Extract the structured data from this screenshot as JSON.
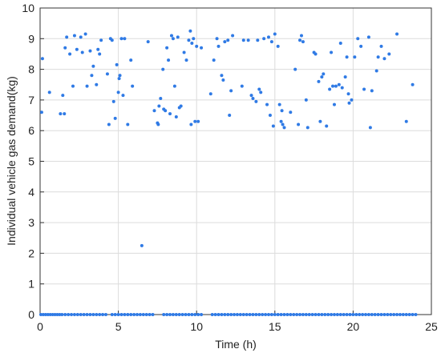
{
  "chart_data": {
    "type": "scatter",
    "xlabel": "Time (h)",
    "ylabel": "Individual vehicle gas demand(kg)",
    "color": "#2f7ae5",
    "xlim": [
      0,
      25
    ],
    "xticks": [
      0,
      5,
      10,
      15,
      20,
      25
    ],
    "ylim": [
      0,
      10
    ],
    "yticks": [
      0,
      1,
      2,
      3,
      4,
      5,
      6,
      7,
      8,
      9,
      10
    ],
    "grid": true,
    "x": [
      0.1,
      0.15,
      0.6,
      1.3,
      1.45,
      1.55,
      1.6,
      1.7,
      1.9,
      2.1,
      2.2,
      2.35,
      2.6,
      2.7,
      2.9,
      3.0,
      3.2,
      3.3,
      3.4,
      3.6,
      3.7,
      3.8,
      3.9,
      4.3,
      4.4,
      4.5,
      4.6,
      4.7,
      4.8,
      4.9,
      5.0,
      5.05,
      5.1,
      5.2,
      5.3,
      5.4,
      5.6,
      5.8,
      5.9,
      6.5,
      6.9,
      7.3,
      7.5,
      7.55,
      7.6,
      7.7,
      7.85,
      7.9,
      8.0,
      8.1,
      8.2,
      8.3,
      8.4,
      8.5,
      8.6,
      8.7,
      8.8,
      8.9,
      9.0,
      9.2,
      9.35,
      9.5,
      9.6,
      9.65,
      9.7,
      9.8,
      9.9,
      10.0,
      10.1,
      10.3,
      10.9,
      11.1,
      11.3,
      11.4,
      11.6,
      11.7,
      11.8,
      12.0,
      12.1,
      12.2,
      12.3,
      12.9,
      13.0,
      13.3,
      13.5,
      13.6,
      13.8,
      13.9,
      14.0,
      14.1,
      14.3,
      14.5,
      14.6,
      14.7,
      14.8,
      14.9,
      15.0,
      15.2,
      15.3,
      15.4,
      15.45,
      15.5,
      15.6,
      16.0,
      16.3,
      16.5,
      16.6,
      16.7,
      16.8,
      17.0,
      17.1,
      17.5,
      17.6,
      17.8,
      17.9,
      18.0,
      18.1,
      18.3,
      18.5,
      18.6,
      18.7,
      18.8,
      18.9,
      19.1,
      19.2,
      19.3,
      19.5,
      19.6,
      19.7,
      19.75,
      19.9,
      20.1,
      20.3,
      20.5,
      20.7,
      21.0,
      21.1,
      21.2,
      21.5,
      21.6,
      21.8,
      22.0,
      22.3,
      22.8,
      23.4,
      23.8,
      0.05,
      0.2,
      0.35,
      0.5,
      0.65,
      0.8,
      0.95,
      1.1,
      1.25,
      1.4,
      1.6,
      1.8,
      2.0,
      2.2,
      2.4,
      2.6,
      2.8,
      3.0,
      3.2,
      3.4,
      3.6,
      3.8,
      4.0,
      4.2,
      4.6,
      4.8,
      5.0,
      5.2,
      5.4,
      5.6,
      5.8,
      6.0,
      6.2,
      6.4,
      6.6,
      6.8,
      7.0,
      7.2,
      7.9,
      8.1,
      8.3,
      8.5,
      8.7,
      8.9,
      9.1,
      9.3,
      9.5,
      9.7,
      9.9,
      10.1,
      10.3,
      11.0,
      11.2,
      11.4,
      11.6,
      11.8,
      12.0,
      12.2,
      12.4,
      12.6,
      12.8,
      13.0,
      13.2,
      13.4,
      13.6,
      13.8,
      14.0,
      14.2,
      14.4,
      14.6,
      14.8,
      15.0,
      15.2,
      15.4,
      15.6,
      15.8,
      16.0,
      16.2,
      16.4,
      16.6,
      16.8,
      17.0,
      17.2,
      17.4,
      17.6,
      17.8,
      18.0,
      18.2,
      18.4,
      18.6,
      18.8,
      19.0,
      19.2,
      19.4,
      19.6,
      19.8,
      20.0,
      20.2,
      20.4,
      20.6,
      20.8,
      21.0,
      21.2,
      21.4,
      21.6,
      21.8,
      22.0,
      22.2,
      22.4,
      22.6,
      22.8,
      23.0,
      23.2,
      23.4,
      23.6,
      23.8,
      24.0
    ],
    "values": [
      6.6,
      8.35,
      7.25,
      6.55,
      7.15,
      6.55,
      8.7,
      9.05,
      8.5,
      7.45,
      9.1,
      8.65,
      9.05,
      8.55,
      9.15,
      7.45,
      8.6,
      7.8,
      8.1,
      7.5,
      8.65,
      8.5,
      8.95,
      7.85,
      6.2,
      9.0,
      8.95,
      6.95,
      6.4,
      8.15,
      7.25,
      7.7,
      7.8,
      9.0,
      7.15,
      9.0,
      6.2,
      8.3,
      7.45,
      2.25,
      8.9,
      6.65,
      6.25,
      6.2,
      6.8,
      7.05,
      8.0,
      6.7,
      6.65,
      8.7,
      8.3,
      6.55,
      9.1,
      9.0,
      7.45,
      6.45,
      9.05,
      6.75,
      6.8,
      8.55,
      8.3,
      8.95,
      9.25,
      6.2,
      8.85,
      9.0,
      6.3,
      8.75,
      6.3,
      8.7,
      7.2,
      8.3,
      9.0,
      8.75,
      7.8,
      7.65,
      8.9,
      8.95,
      6.5,
      7.3,
      9.1,
      7.45,
      8.95,
      8.95,
      7.15,
      7.05,
      6.95,
      8.95,
      7.35,
      7.25,
      9.0,
      6.85,
      9.05,
      6.5,
      8.9,
      6.15,
      9.15,
      8.75,
      6.85,
      6.3,
      6.65,
      6.2,
      6.1,
      6.6,
      8.0,
      6.2,
      8.95,
      9.1,
      8.9,
      7.0,
      6.1,
      8.55,
      8.5,
      7.6,
      6.3,
      7.75,
      7.85,
      6.15,
      7.35,
      8.55,
      7.45,
      6.85,
      7.45,
      7.5,
      8.85,
      7.4,
      7.75,
      8.4,
      7.2,
      6.9,
      7.0,
      8.4,
      9.0,
      8.75,
      7.35,
      9.05,
      6.1,
      7.3,
      7.95,
      8.4,
      8.75,
      8.35,
      8.5,
      9.15,
      6.3,
      7.5,
      0,
      0,
      0,
      0,
      0,
      0,
      0,
      0,
      0,
      0,
      0,
      0,
      0,
      0,
      0,
      0,
      0,
      0,
      0,
      0,
      0,
      0,
      0,
      0,
      0,
      0,
      0,
      0,
      0,
      0,
      0,
      0,
      0,
      0,
      0,
      0,
      0,
      0,
      0,
      0,
      0,
      0,
      0,
      0,
      0,
      0,
      0,
      0,
      0,
      0,
      0,
      0,
      0,
      0,
      0,
      0,
      0,
      0,
      0,
      0,
      0,
      0,
      0,
      0,
      0,
      0,
      0,
      0,
      0,
      0,
      0,
      0,
      0,
      0,
      0,
      0,
      0,
      0,
      0,
      0,
      0,
      0,
      0,
      0,
      0,
      0,
      0,
      0,
      0,
      0,
      0,
      0,
      0,
      0,
      0,
      0,
      0,
      0,
      0,
      0,
      0,
      0,
      0,
      0,
      0,
      0,
      0,
      0,
      0,
      0,
      0,
      0,
      0,
      0,
      0,
      0,
      0
    ]
  }
}
